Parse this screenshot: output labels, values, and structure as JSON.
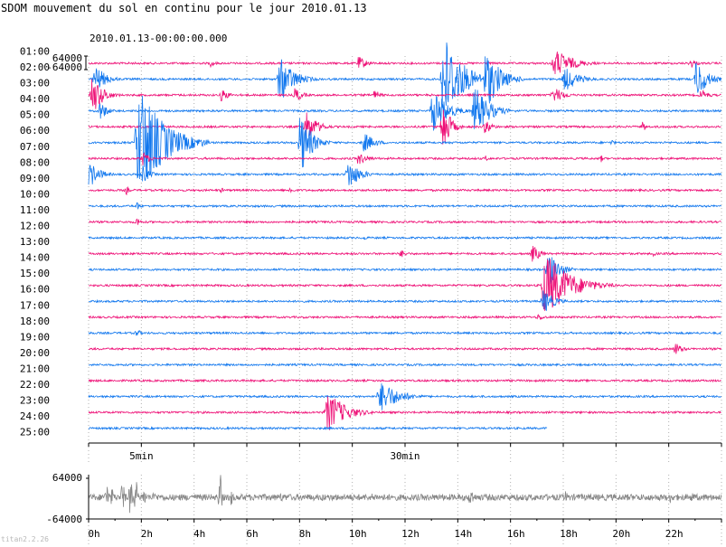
{
  "chart_data": {
    "type": "line",
    "title": "SDOM mouvement du sol en continu pour le jour 2010.01.13",
    "start_time": "2010.01.13-00:00:00.000",
    "amplitude_labels": [
      "64000",
      "-64000"
    ],
    "hour_labels": [
      "01:00",
      "02:00",
      "03:00",
      "04:00",
      "05:00",
      "06:00",
      "07:00",
      "08:00",
      "09:00",
      "10:00",
      "11:00",
      "12:00",
      "13:00",
      "14:00",
      "15:00",
      "16:00",
      "17:00",
      "18:00",
      "19:00",
      "20:00",
      "21:00",
      "22:00",
      "23:00",
      "24:00",
      "25:00"
    ],
    "minute_axis": {
      "range": [
        0,
        60
      ],
      "labels": [
        "5min",
        "30min"
      ],
      "label_values": [
        5,
        30
      ]
    },
    "day_axis": {
      "range": [
        0,
        24
      ],
      "labels": [
        "0h",
        "2h",
        "4h",
        "6h",
        "8h",
        "10h",
        "12h",
        "14h",
        "16h",
        "18h",
        "20h",
        "22h"
      ],
      "label_values": [
        0,
        2,
        4,
        6,
        8,
        10,
        12,
        14,
        16,
        18,
        20,
        22
      ]
    },
    "overview_ylabels": [
      "64000",
      "-64000"
    ],
    "colors": {
      "trace_a": "#ee1177",
      "trace_b": "#1177ee",
      "overview": "#888888",
      "grid": "#b0b0b0"
    },
    "events": [
      {
        "line": 0,
        "minute": 11.5,
        "amp": 4,
        "dur": 1.5
      },
      {
        "line": 0,
        "minute": 25.5,
        "amp": 7,
        "dur": 2.5
      },
      {
        "line": 0,
        "minute": 44,
        "amp": 14,
        "dur": 5
      },
      {
        "line": 0,
        "minute": 57,
        "amp": 5,
        "dur": 2
      },
      {
        "line": 1,
        "minute": 0.5,
        "amp": 14,
        "dur": 3
      },
      {
        "line": 1,
        "minute": 18,
        "amp": 22,
        "dur": 4
      },
      {
        "line": 1,
        "minute": 33.5,
        "amp": 45,
        "dur": 5
      },
      {
        "line": 1,
        "minute": 37.5,
        "amp": 30,
        "dur": 4
      },
      {
        "line": 1,
        "minute": 45,
        "amp": 12,
        "dur": 4
      },
      {
        "line": 1,
        "minute": 57.5,
        "amp": 20,
        "dur": 3
      },
      {
        "line": 2,
        "minute": 0.3,
        "amp": 18,
        "dur": 3
      },
      {
        "line": 2,
        "minute": 12.5,
        "amp": 7,
        "dur": 2
      },
      {
        "line": 2,
        "minute": 19.5,
        "amp": 8,
        "dur": 2
      },
      {
        "line": 2,
        "minute": 27,
        "amp": 5,
        "dur": 2
      },
      {
        "line": 2,
        "minute": 44,
        "amp": 8,
        "dur": 3
      },
      {
        "line": 2,
        "minute": 58,
        "amp": 6,
        "dur": 2
      },
      {
        "line": 3,
        "minute": 1,
        "amp": 10,
        "dur": 2
      },
      {
        "line": 3,
        "minute": 32.5,
        "amp": 22,
        "dur": 4
      },
      {
        "line": 3,
        "minute": 36.5,
        "amp": 24,
        "dur": 4
      },
      {
        "line": 4,
        "minute": 20.5,
        "amp": 16,
        "dur": 3
      },
      {
        "line": 4,
        "minute": 33.5,
        "amp": 28,
        "dur": 2
      },
      {
        "line": 4,
        "minute": 37.5,
        "amp": 8,
        "dur": 2
      },
      {
        "line": 4,
        "minute": 52.5,
        "amp": 6,
        "dur": 1
      },
      {
        "line": 5,
        "minute": 4.5,
        "amp": 55,
        "dur": 7
      },
      {
        "line": 5,
        "minute": 20,
        "amp": 30,
        "dur": 3
      },
      {
        "line": 5,
        "minute": 26,
        "amp": 10,
        "dur": 3
      },
      {
        "line": 5,
        "minute": 49.5,
        "amp": 4,
        "dur": 1
      },
      {
        "line": 6,
        "minute": 5,
        "amp": 8,
        "dur": 2
      },
      {
        "line": 6,
        "minute": 25.5,
        "amp": 6,
        "dur": 3
      },
      {
        "line": 6,
        "minute": 37.5,
        "amp": 4,
        "dur": 1
      },
      {
        "line": 6,
        "minute": 48.5,
        "amp": 4,
        "dur": 1
      },
      {
        "line": 7,
        "minute": 0,
        "amp": 12,
        "dur": 3
      },
      {
        "line": 7,
        "minute": 5,
        "amp": 10,
        "dur": 2
      },
      {
        "line": 7,
        "minute": 24.5,
        "amp": 16,
        "dur": 3
      },
      {
        "line": 8,
        "minute": 3.5,
        "amp": 5,
        "dur": 1
      },
      {
        "line": 8,
        "minute": 12.5,
        "amp": 3,
        "dur": 1
      },
      {
        "line": 8,
        "minute": 19,
        "amp": 5,
        "dur": 1
      },
      {
        "line": 9,
        "minute": 4.5,
        "amp": 5,
        "dur": 1
      },
      {
        "line": 10,
        "minute": 4.5,
        "amp": 6,
        "dur": 1
      },
      {
        "line": 11,
        "minute": 26,
        "amp": 3,
        "dur": 1
      },
      {
        "line": 12,
        "minute": 29.5,
        "amp": 4,
        "dur": 2
      },
      {
        "line": 12,
        "minute": 42,
        "amp": 10,
        "dur": 2
      },
      {
        "line": 12,
        "minute": 53.5,
        "amp": 3,
        "dur": 1
      },
      {
        "line": 13,
        "minute": 43.5,
        "amp": 18,
        "dur": 3
      },
      {
        "line": 14,
        "minute": 43,
        "amp": 32,
        "dur": 7
      },
      {
        "line": 15,
        "minute": 43,
        "amp": 12,
        "dur": 3
      },
      {
        "line": 16,
        "minute": 42.5,
        "amp": 4,
        "dur": 2
      },
      {
        "line": 17,
        "minute": 4.5,
        "amp": 6,
        "dur": 1
      },
      {
        "line": 18,
        "minute": 55.5,
        "amp": 7,
        "dur": 2
      },
      {
        "line": 21,
        "minute": 27.5,
        "amp": 16,
        "dur": 5
      },
      {
        "line": 22,
        "minute": 22.5,
        "amp": 20,
        "dur": 5
      }
    ],
    "overview_spikes": [
      {
        "hour": 0.7,
        "amp": 16
      },
      {
        "hour": 0.9,
        "amp": 12
      },
      {
        "hour": 1.3,
        "amp": 22
      },
      {
        "hour": 1.6,
        "amp": 26
      },
      {
        "hour": 1.8,
        "amp": 20
      },
      {
        "hour": 2.1,
        "amp": 12
      },
      {
        "hour": 2.5,
        "amp": 8
      },
      {
        "hour": 5.0,
        "amp": 28
      },
      {
        "hour": 5.4,
        "amp": 12
      },
      {
        "hour": 7.3,
        "amp": 6
      },
      {
        "hour": 8.9,
        "amp": 6
      },
      {
        "hour": 10.8,
        "amp": 7
      },
      {
        "hour": 14.5,
        "amp": 15
      },
      {
        "hour": 18.1,
        "amp": 8
      },
      {
        "hour": 20.9,
        "amp": 5
      },
      {
        "hour": 22.1,
        "amp": 10
      },
      {
        "hour": 22.9,
        "amp": 8
      }
    ]
  },
  "footer": {
    "watermark": "titan2.2.26"
  }
}
